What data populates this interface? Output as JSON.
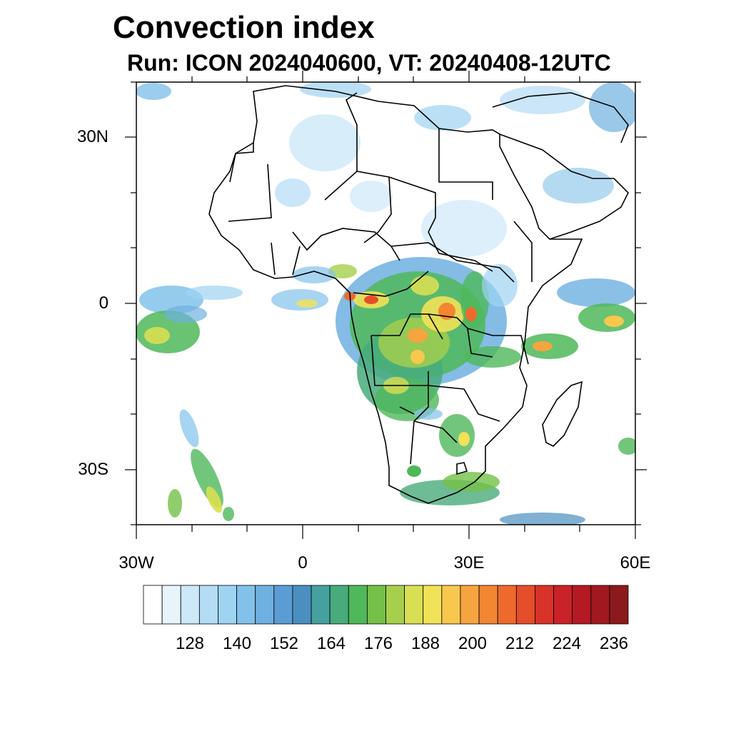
{
  "title": "Convection index",
  "subtitle": "Run: ICON 2024040600,  VT: 20240408-12UTC",
  "axes": {
    "lat_labels": [
      "30N",
      "0",
      "30S"
    ],
    "lon_labels": [
      "30W",
      "0",
      "30E",
      "60E"
    ]
  },
  "colorbar": {
    "labels": [
      "128",
      "140",
      "152",
      "164",
      "176",
      "188",
      "200",
      "212",
      "224",
      "236"
    ],
    "colors": [
      "#ffffff",
      "#e8f4fc",
      "#cde8f8",
      "#b4dcf5",
      "#9ed3f2",
      "#82c2ea",
      "#6eb0e0",
      "#5b9cd4",
      "#4a8fbf",
      "#45a0a0",
      "#48ab7c",
      "#4fb85a",
      "#74c048",
      "#a6d04c",
      "#d9df52",
      "#f2e258",
      "#f7c84d",
      "#f6a43f",
      "#f28632",
      "#ee6a2c",
      "#e44e2a",
      "#d93228",
      "#c92228",
      "#b51a24",
      "#a01820",
      "#8a1a1c"
    ]
  }
}
